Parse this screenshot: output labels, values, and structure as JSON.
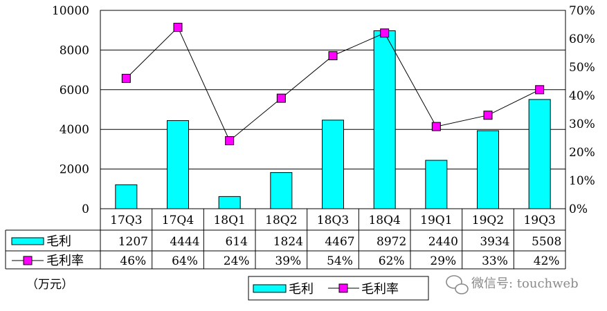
{
  "chart_data": {
    "type": "bar",
    "categories": [
      "17Q3",
      "17Q4",
      "18Q1",
      "18Q2",
      "18Q3",
      "18Q4",
      "19Q1",
      "19Q2",
      "19Q3"
    ],
    "series": [
      {
        "name": "毛利",
        "type": "bar",
        "axis": "left",
        "color": "#00FFFF",
        "values": [
          1207,
          4444,
          614,
          1824,
          4467,
          8972,
          2440,
          3934,
          5508
        ],
        "labels": [
          "1207",
          "4444",
          "614",
          "1824",
          "4467",
          "8972",
          "2440",
          "3934",
          "5508"
        ]
      },
      {
        "name": "毛利率",
        "type": "line",
        "axis": "right",
        "color": "#FF00FF",
        "values": [
          46,
          64,
          24,
          39,
          54,
          62,
          29,
          33,
          42
        ],
        "labels": [
          "46%",
          "64%",
          "24%",
          "39%",
          "54%",
          "62%",
          "29%",
          "33%",
          "42%"
        ]
      }
    ],
    "y_left": {
      "ylim": [
        0,
        10000
      ],
      "ticks": [
        0,
        2000,
        4000,
        6000,
        8000,
        10000
      ],
      "tick_labels": [
        "0",
        "2000",
        "4000",
        "6000",
        "8000",
        "10000"
      ]
    },
    "y_right": {
      "ylim": [
        0,
        70
      ],
      "ticks": [
        0,
        10,
        20,
        30,
        40,
        50,
        60,
        70
      ],
      "tick_labels": [
        "0%",
        "10%",
        "20%",
        "30%",
        "40%",
        "50%",
        "60%",
        "70%"
      ]
    },
    "unit_label": "（万元）",
    "grid": true,
    "legend": {
      "placement": "bottom-center",
      "entries": [
        "毛利",
        "毛利率"
      ]
    },
    "data_table": true
  },
  "watermark": {
    "text": "微信号: touchweb",
    "icon": "wechat-icon"
  }
}
